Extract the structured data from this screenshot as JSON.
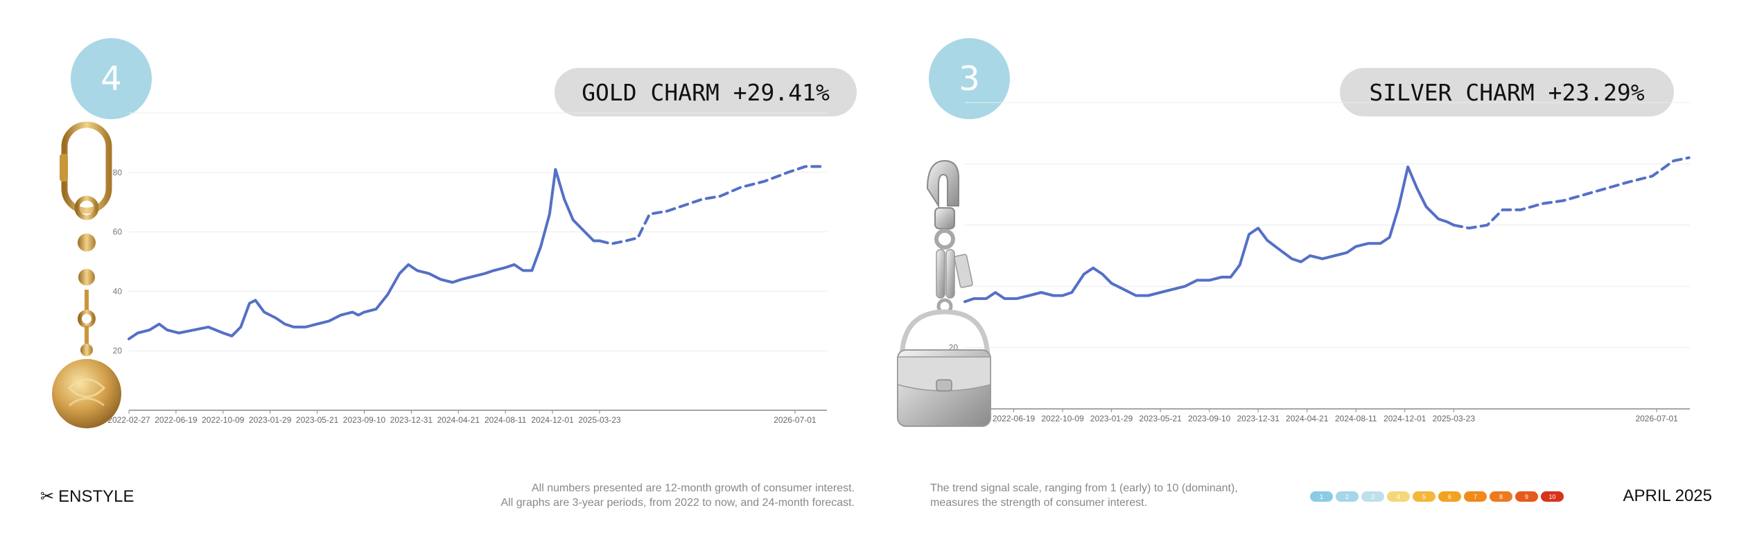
{
  "panels": [
    {
      "rank": "4",
      "title": "GOLD CHARM +29.41%",
      "product_image": "gold-charm-keychain",
      "accent": "#5470c6"
    },
    {
      "rank": "3",
      "title": "SILVER CHARM +23.29%",
      "product_image": "silver-bag-charm",
      "accent": "#5470c6"
    }
  ],
  "footer": {
    "brand": "ENSTYLE",
    "brand_icon": "scissors-icon",
    "note_left_1": "All numbers presented are 12-month growth of consumer interest.",
    "note_left_2": "All graphs are 3-year periods, from 2022 to now, and 24-month forecast.",
    "note_right_1": "The trend signal scale, ranging from 1 (early) to 10 (dominant),",
    "note_right_2": "measures the strength of consumer interest.",
    "scale": [
      {
        "label": "1",
        "color": "#8ccbe6"
      },
      {
        "label": "2",
        "color": "#a6d6e8"
      },
      {
        "label": "3",
        "color": "#bfdfeb"
      },
      {
        "label": "4",
        "color": "#f5d77a"
      },
      {
        "label": "5",
        "color": "#f4b73a"
      },
      {
        "label": "6",
        "color": "#f3a21f"
      },
      {
        "label": "7",
        "color": "#f08a1a"
      },
      {
        "label": "8",
        "color": "#ec7a20"
      },
      {
        "label": "9",
        "color": "#e65a1c"
      },
      {
        "label": "10",
        "color": "#d8321a"
      }
    ],
    "date": "APRIL 2025"
  },
  "chart_data": [
    {
      "type": "line",
      "x_ticks": [
        "2022-02-27",
        "2022-06-19",
        "2022-10-09",
        "2023-01-29",
        "2023-05-21",
        "2023-09-10",
        "2023-12-31",
        "2024-04-21",
        "2024-08-11",
        "2024-12-01",
        "2025-03-23",
        "2026-07-01"
      ],
      "y_ticks": [
        20,
        40,
        60,
        80
      ],
      "ylim": [
        0,
        100
      ],
      "xlim": [
        "2022-02-27",
        "2026-09-15"
      ],
      "grid": true,
      "series": [
        {
          "style": "solid",
          "points": [
            [
              "2022-02-27",
              24
            ],
            [
              "2022-03-20",
              26
            ],
            [
              "2022-04-17",
              27
            ],
            [
              "2022-05-10",
              29
            ],
            [
              "2022-05-29",
              27
            ],
            [
              "2022-06-26",
              26
            ],
            [
              "2022-07-31",
              27
            ],
            [
              "2022-09-04",
              28
            ],
            [
              "2022-10-09",
              26
            ],
            [
              "2022-10-30",
              25
            ],
            [
              "2022-11-20",
              28
            ],
            [
              "2022-12-11",
              36
            ],
            [
              "2022-12-25",
              37
            ],
            [
              "2023-01-15",
              33
            ],
            [
              "2023-02-12",
              31
            ],
            [
              "2023-03-05",
              29
            ],
            [
              "2023-03-26",
              28
            ],
            [
              "2023-04-23",
              28
            ],
            [
              "2023-05-21",
              29
            ],
            [
              "2023-06-18",
              30
            ],
            [
              "2023-07-16",
              32
            ],
            [
              "2023-08-13",
              33
            ],
            [
              "2023-08-27",
              32
            ],
            [
              "2023-09-10",
              33
            ],
            [
              "2023-10-08",
              34
            ],
            [
              "2023-11-05",
              39
            ],
            [
              "2023-12-03",
              46
            ],
            [
              "2023-12-24",
              49
            ],
            [
              "2024-01-14",
              47
            ],
            [
              "2024-02-11",
              46
            ],
            [
              "2024-03-10",
              44
            ],
            [
              "2024-04-07",
              43
            ],
            [
              "2024-04-28",
              44
            ],
            [
              "2024-05-26",
              45
            ],
            [
              "2024-06-23",
              46
            ],
            [
              "2024-07-14",
              47
            ],
            [
              "2024-08-11",
              48
            ],
            [
              "2024-09-01",
              49
            ],
            [
              "2024-09-22",
              47
            ],
            [
              "2024-10-13",
              47
            ],
            [
              "2024-11-03",
              55
            ],
            [
              "2024-11-24",
              66
            ],
            [
              "2024-12-08",
              81
            ],
            [
              "2024-12-29",
              71
            ],
            [
              "2025-01-19",
              64
            ],
            [
              "2025-02-16",
              60
            ],
            [
              "2025-03-09",
              57
            ],
            [
              "2025-03-23",
              57
            ]
          ]
        },
        {
          "style": "dashed",
          "points": [
            [
              "2025-03-23",
              57
            ],
            [
              "2025-04-20",
              56
            ],
            [
              "2025-05-25",
              57
            ],
            [
              "2025-06-22",
              58
            ],
            [
              "2025-07-20",
              66
            ],
            [
              "2025-08-31",
              67
            ],
            [
              "2025-10-12",
              69
            ],
            [
              "2025-11-23",
              71
            ],
            [
              "2026-01-04",
              72
            ],
            [
              "2026-02-22",
              75
            ],
            [
              "2026-04-19",
              77
            ],
            [
              "2026-06-14",
              80
            ],
            [
              "2026-07-26",
              82
            ],
            [
              "2026-09-06",
              82
            ]
          ]
        }
      ]
    },
    {
      "type": "line",
      "x_ticks": [
        "2022-06-19",
        "2022-10-09",
        "2023-01-29",
        "2023-05-21",
        "2023-09-10",
        "2023-12-31",
        "2024-04-21",
        "2024-08-11",
        "2024-12-01",
        "2025-03-23",
        "2026-07-01"
      ],
      "y_ticks": [
        20
      ],
      "ylim": [
        0,
        100
      ],
      "xlim": [
        "2022-02-27",
        "2026-09-15"
      ],
      "grid": true,
      "series": [
        {
          "style": "solid",
          "points": [
            [
              "2022-02-27",
              35
            ],
            [
              "2022-03-20",
              36
            ],
            [
              "2022-04-17",
              36
            ],
            [
              "2022-05-08",
              38
            ],
            [
              "2022-05-29",
              36
            ],
            [
              "2022-06-26",
              36
            ],
            [
              "2022-07-24",
              37
            ],
            [
              "2022-08-21",
              38
            ],
            [
              "2022-09-18",
              37
            ],
            [
              "2022-10-09",
              37
            ],
            [
              "2022-10-30",
              38
            ],
            [
              "2022-11-27",
              44
            ],
            [
              "2022-12-18",
              46
            ],
            [
              "2023-01-08",
              44
            ],
            [
              "2023-01-29",
              41
            ],
            [
              "2023-02-26",
              39
            ],
            [
              "2023-03-26",
              37
            ],
            [
              "2023-04-23",
              37
            ],
            [
              "2023-05-21",
              38
            ],
            [
              "2023-06-18",
              39
            ],
            [
              "2023-07-16",
              40
            ],
            [
              "2023-08-13",
              42
            ],
            [
              "2023-09-10",
              42
            ],
            [
              "2023-10-08",
              43
            ],
            [
              "2023-10-29",
              43
            ],
            [
              "2023-11-19",
              47
            ],
            [
              "2023-12-10",
              57
            ],
            [
              "2023-12-31",
              59
            ],
            [
              "2024-01-21",
              55
            ],
            [
              "2024-02-18",
              52
            ],
            [
              "2024-03-17",
              49
            ],
            [
              "2024-04-07",
              48
            ],
            [
              "2024-04-28",
              50
            ],
            [
              "2024-05-26",
              49
            ],
            [
              "2024-06-23",
              50
            ],
            [
              "2024-07-21",
              51
            ],
            [
              "2024-08-11",
              53
            ],
            [
              "2024-09-08",
              54
            ],
            [
              "2024-10-06",
              54
            ],
            [
              "2024-10-27",
              56
            ],
            [
              "2024-11-17",
              66
            ],
            [
              "2024-12-08",
              79
            ],
            [
              "2024-12-29",
              72
            ],
            [
              "2025-01-19",
              66
            ],
            [
              "2025-02-16",
              62
            ],
            [
              "2025-03-09",
              61
            ],
            [
              "2025-03-23",
              60
            ]
          ]
        },
        {
          "style": "dashed",
          "points": [
            [
              "2025-03-23",
              60
            ],
            [
              "2025-04-27",
              59
            ],
            [
              "2025-06-08",
              60
            ],
            [
              "2025-07-13",
              65
            ],
            [
              "2025-08-24",
              65
            ],
            [
              "2025-10-12",
              67
            ],
            [
              "2025-11-30",
              68
            ],
            [
              "2026-01-18",
              70
            ],
            [
              "2026-03-08",
              72
            ],
            [
              "2026-04-26",
              74
            ],
            [
              "2026-06-21",
              76
            ],
            [
              "2026-08-09",
              81
            ],
            [
              "2026-09-13",
              82
            ]
          ]
        }
      ]
    }
  ]
}
